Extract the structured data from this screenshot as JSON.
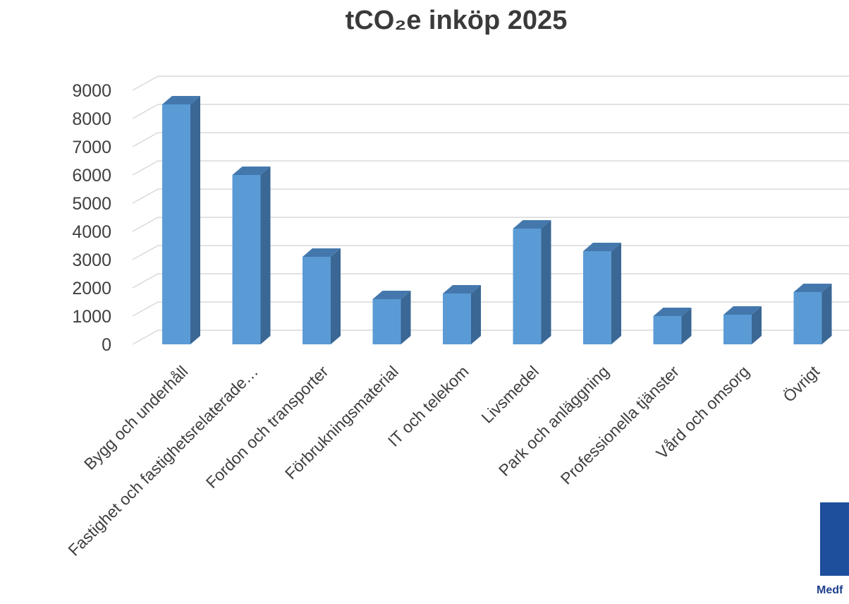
{
  "chart_data": {
    "type": "bar",
    "title": "tCO₂e inköp 2025",
    "categories": [
      "Bygg och underhåll",
      "Fastighet och fastighetsrelaterade…",
      "Fordon och transporter",
      "Förbrukningsmaterial",
      "IT och telekom",
      "Livsmedel",
      "Park och anläggning",
      "Professionella tjänster",
      "Vård och omsorg",
      "Övrigt"
    ],
    "values": [
      8500,
      6000,
      3100,
      1600,
      1800,
      4100,
      3300,
      1000,
      1050,
      1850
    ],
    "ylim": [
      0,
      9000
    ],
    "yticks": [
      0,
      1000,
      2000,
      3000,
      4000,
      5000,
      6000,
      7000,
      8000,
      9000
    ],
    "grid": true,
    "colors": {
      "bar_front": "#5b9bd5",
      "bar_side": "#3a6794",
      "bar_top": "#4478ad",
      "grid": "#d9d9d9"
    }
  },
  "logo": {
    "text": "Medf"
  }
}
